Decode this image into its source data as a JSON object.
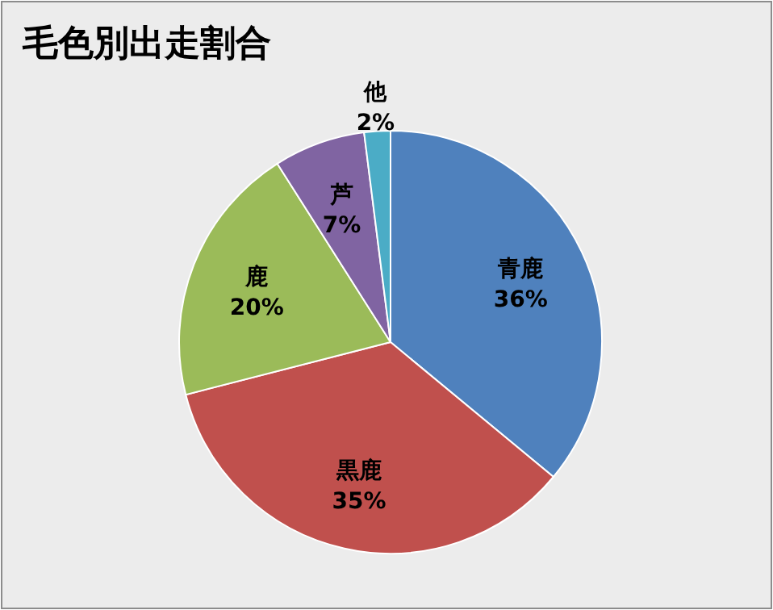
{
  "chart_data": {
    "type": "pie",
    "title": "毛色別出走割合",
    "categories": [
      "青鹿",
      "黒鹿",
      "鹿",
      "芦",
      "他"
    ],
    "values": [
      36,
      35,
      20,
      7,
      2
    ],
    "colors": [
      "#4f81bd",
      "#c0504d",
      "#9bbb59",
      "#8064a2",
      "#4bacc6"
    ],
    "value_labels": [
      "36%",
      "35%",
      "20%",
      "7%",
      "2%"
    ],
    "legend": false
  }
}
